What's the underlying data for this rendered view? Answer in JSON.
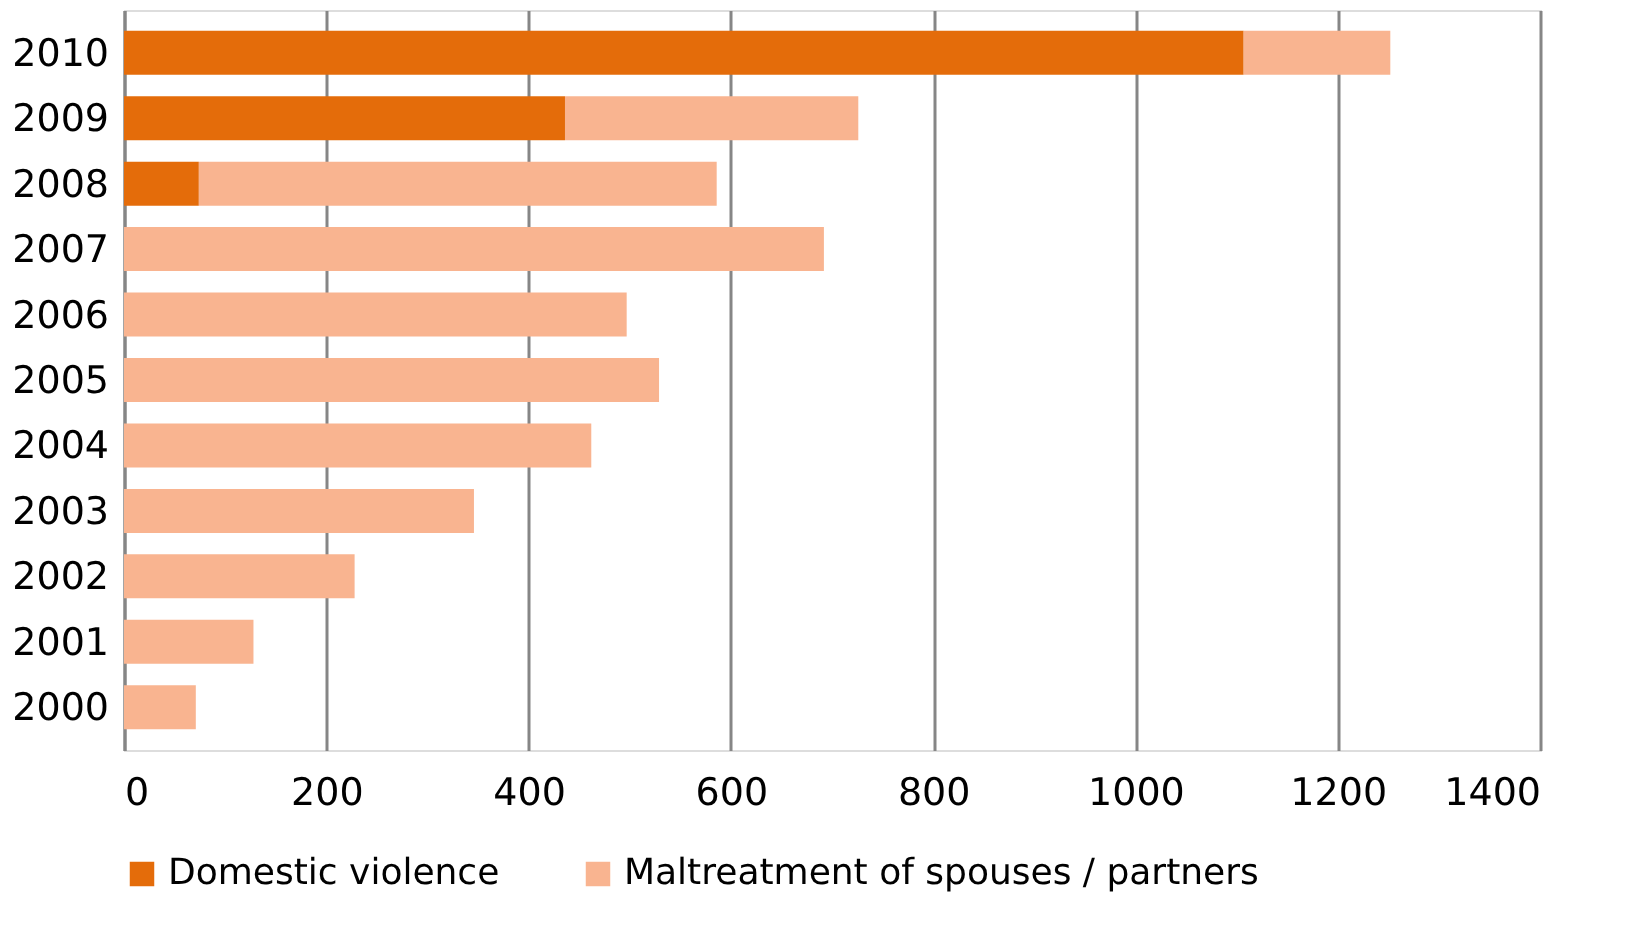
{
  "chart_data": {
    "type": "bar",
    "orientation": "horizontal",
    "stacked": true,
    "categories": [
      "2010",
      "2009",
      "2008",
      "2007",
      "2006",
      "2005",
      "2004",
      "2003",
      "2002",
      "2001",
      "2000"
    ],
    "series": [
      {
        "name": "Domestic violence",
        "color": "#e46c0a",
        "values": [
          1107,
          436,
          74,
          null,
          null,
          null,
          null,
          null,
          null,
          null,
          null
        ]
      },
      {
        "name": "Maltreatment of spouses / partners",
        "color": "#f9b490",
        "values": [
          145,
          290,
          512,
          692,
          497,
          529,
          462,
          346,
          228,
          128,
          71
        ]
      }
    ],
    "xlim": [
      0,
      1400
    ],
    "xticks": [
      0,
      200,
      400,
      600,
      800,
      1000,
      1200,
      1400
    ],
    "grid": "x",
    "legend": "bottom"
  }
}
